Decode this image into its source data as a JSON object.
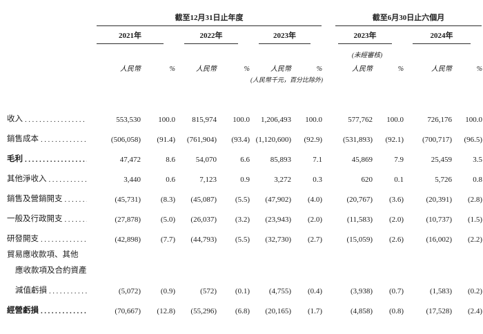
{
  "page": {
    "background": "#ffffff",
    "text_color": "#1d1d1d",
    "rule_color": "#2b2b2b"
  },
  "table": {
    "groups": [
      {
        "title": "截至12月31日止年度"
      },
      {
        "title": "截至6月30日止六個月"
      }
    ],
    "years": [
      {
        "label": "2021年"
      },
      {
        "label": "2022年"
      },
      {
        "label": "2023年"
      },
      {
        "label": "2023年",
        "note": "(未經審核)"
      },
      {
        "label": "2024年"
      }
    ],
    "unaudited_note": "(未經審核)",
    "currency_label": "人民幣",
    "percent_label": "%",
    "unit_note": "(人民幣千元，百分比除外)",
    "rows": [
      {
        "label_lines": [
          "收入"
        ],
        "bold": false,
        "values": [
          "553,530",
          "100.0",
          "815,974",
          "100.0",
          "1,206,493",
          "100.0",
          "577,762",
          "100.0",
          "726,176",
          "100.0"
        ]
      },
      {
        "label_lines": [
          "銷售成本"
        ],
        "bold": false,
        "values": [
          "(506,058)",
          "(91.4)",
          "(761,904)",
          "(93.4)",
          "(1,120,600)",
          "(92.9)",
          "(531,893)",
          "(92.1)",
          "(700,717)",
          "(96.5)"
        ]
      },
      {
        "label_lines": [
          "毛利"
        ],
        "bold": true,
        "values": [
          "47,472",
          "8.6",
          "54,070",
          "6.6",
          "85,893",
          "7.1",
          "45,869",
          "7.9",
          "25,459",
          "3.5"
        ]
      },
      {
        "label_lines": [
          "其他淨收入"
        ],
        "bold": false,
        "values": [
          "3,440",
          "0.6",
          "7,123",
          "0.9",
          "3,272",
          "0.3",
          "620",
          "0.1",
          "5,726",
          "0.8"
        ]
      },
      {
        "label_lines": [
          "銷售及營銷開支"
        ],
        "bold": false,
        "values": [
          "(45,731)",
          "(8.3)",
          "(45,087)",
          "(5.5)",
          "(47,902)",
          "(4.0)",
          "(20,767)",
          "(3.6)",
          "(20,391)",
          "(2.8)"
        ]
      },
      {
        "label_lines": [
          "一般及行政開支"
        ],
        "bold": false,
        "values": [
          "(27,878)",
          "(5.0)",
          "(26,037)",
          "(3.2)",
          "(23,943)",
          "(2.0)",
          "(11,583)",
          "(2.0)",
          "(10,737)",
          "(1.5)"
        ]
      },
      {
        "label_lines": [
          "研發開支"
        ],
        "bold": false,
        "values": [
          "(42,898)",
          "(7.7)",
          "(44,793)",
          "(5.5)",
          "(32,730)",
          "(2.7)",
          "(15,059)",
          "(2.6)",
          "(16,002)",
          "(2.2)"
        ]
      },
      {
        "label_lines": [
          "貿易應收款項、其他",
          "應收款項及合約資產",
          "減值虧損"
        ],
        "bold": false,
        "values": [
          "(5,072)",
          "(0.9)",
          "(572)",
          "(0.1)",
          "(4,755)",
          "(0.4)",
          "(3,938)",
          "(0.7)",
          "(1,583)",
          "(0.2)"
        ]
      },
      {
        "label_lines": [
          "經營虧損"
        ],
        "bold": true,
        "values": [
          "(70,667)",
          "(12.8)",
          "(55,296)",
          "(6.8)",
          "(20,165)",
          "(1.7)",
          "(4,858)",
          "(0.8)",
          "(17,528)",
          "(2.4)"
        ]
      }
    ]
  }
}
